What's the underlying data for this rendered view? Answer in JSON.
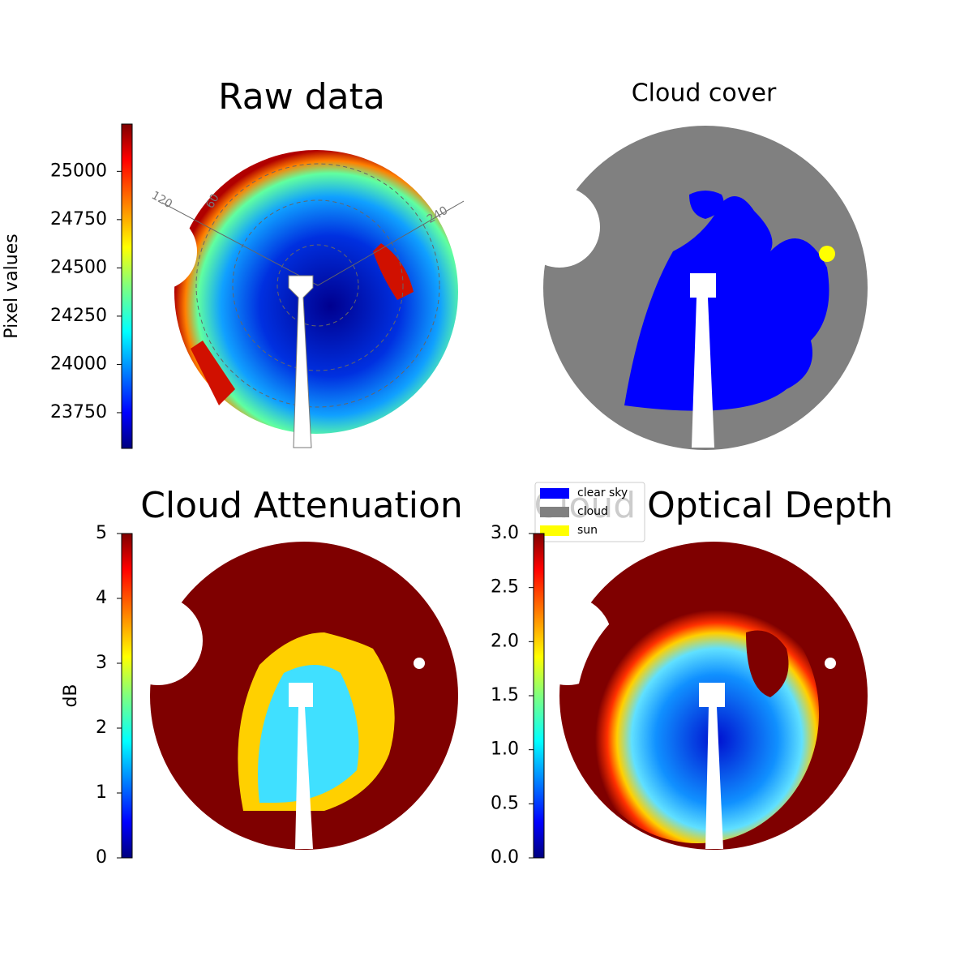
{
  "chart_data": [
    {
      "type": "image",
      "title": "Raw data",
      "colormap": "jet",
      "colorbar": {
        "label": "Pixel values",
        "lim": [
          23565,
          25245
        ],
        "ticks": [
          23750,
          24000,
          24250,
          24500,
          24750,
          25000
        ]
      },
      "annotations": [
        "120",
        "60",
        "240"
      ]
    },
    {
      "type": "image",
      "title": "Cloud cover",
      "legend": [
        {
          "name": "clear sky",
          "color": "#0000ff"
        },
        {
          "name": "cloud",
          "color": "#808080"
        },
        {
          "name": "sun",
          "color": "#ffff00"
        }
      ]
    },
    {
      "type": "image",
      "title": "Cloud Attenuation",
      "colormap": "jet",
      "colorbar": {
        "label": "dB",
        "lim": [
          0,
          5
        ],
        "ticks": [
          0,
          1,
          2,
          3,
          4,
          5
        ]
      }
    },
    {
      "type": "image",
      "title": "Cloud Optical Depth",
      "colormap": "jet",
      "colorbar": {
        "lim": [
          0,
          3
        ],
        "ticks": [
          {
            "value": 0,
            "label": "0.0"
          },
          {
            "value": 0.5,
            "label": "0.5"
          },
          {
            "value": 1,
            "label": "1.0"
          },
          {
            "value": 1.5,
            "label": "1.5"
          },
          {
            "value": 2,
            "label": "2.0"
          },
          {
            "value": 2.5,
            "label": "2.5"
          },
          {
            "value": 3,
            "label": "3.0"
          }
        ]
      }
    }
  ]
}
